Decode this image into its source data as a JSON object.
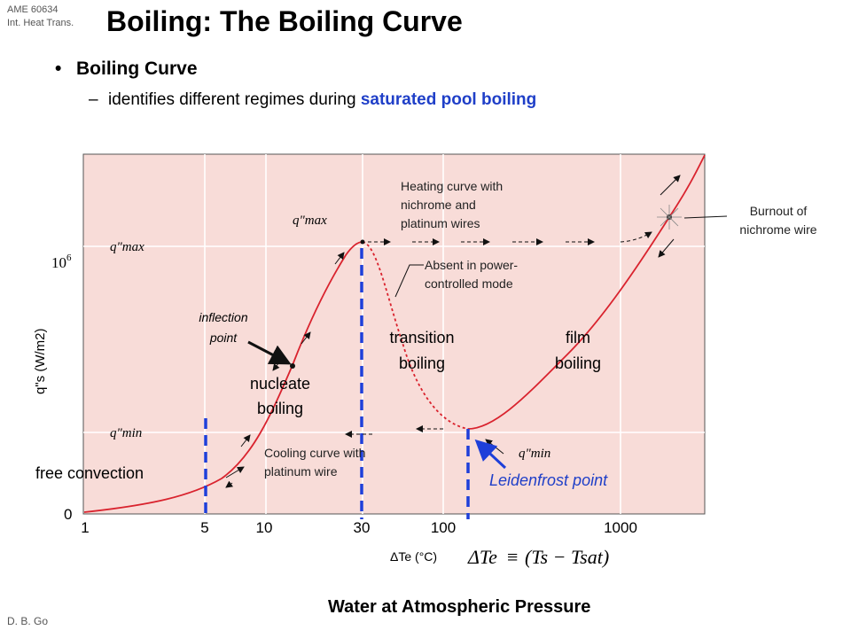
{
  "course": {
    "line1": "AME 60634",
    "line2": "Int. Heat Trans."
  },
  "title": "Boiling: The Boiling Curve",
  "bullets": {
    "level1": "Boiling Curve",
    "level2_prefix": "identifies different regimes during ",
    "level2_highlight": "saturated pool boiling"
  },
  "author": "D. B. Go",
  "caption": "Water at Atmospheric Pressure",
  "colors": {
    "plot_bg": "#f8dcd8",
    "curve": "#d9232e",
    "dashed_marker": "#1e3fd9",
    "highlight": "#1f3fc8"
  },
  "chart_data": {
    "type": "line",
    "xscale": "log",
    "x_ticks": [
      "1",
      "5",
      "10",
      "30",
      "100",
      "1000"
    ],
    "y_ticks": [
      "10^6",
      "0"
    ],
    "ylabel": "q\"s (W/m2)",
    "xlabel": "ΔTe (°C)",
    "equation": {
      "lhs": "ΔTe",
      "rhs": "(Ts − Tsat)"
    },
    "series": [
      {
        "x": [
          1,
          3,
          5,
          8,
          12,
          18,
          25,
          30,
          45,
          70,
          100,
          120,
          150,
          300,
          700,
          1300,
          2000
        ],
        "y_level": [
          0.0,
          0.06,
          0.09,
          0.19,
          0.38,
          0.62,
          0.74,
          0.75,
          0.52,
          0.28,
          0.24,
          0.24,
          0.26,
          0.4,
          0.62,
          0.84,
          1.0
        ]
      }
    ],
    "markers_dashed_x": [
      5,
      30,
      120
    ],
    "regimes": [
      {
        "line1": "free convection",
        "line2": ""
      },
      {
        "line1": "nucleate",
        "line2": "boiling"
      },
      {
        "line1": "transition",
        "line2": "boiling"
      },
      {
        "line1": "film",
        "line2": "boiling"
      }
    ],
    "annotations": {
      "inflection_1": "inflection",
      "inflection_2": "point",
      "leidenfrost": "Leidenfrost point",
      "heating_1": "Heating curve with",
      "heating_2": "nichrome and",
      "heating_3": "platinum wires",
      "absent_1": "Absent in power-",
      "absent_2": "controlled mode",
      "cooling_1": "Cooling curve with",
      "cooling_2": "platinum wire",
      "burnout_1": "Burnout of",
      "burnout_2": "nichrome wire",
      "qmax_label": "q\"max",
      "qmin_label": "q\"min",
      "q_axis_max": "q\"max",
      "q_axis_min": "q\"min"
    }
  }
}
